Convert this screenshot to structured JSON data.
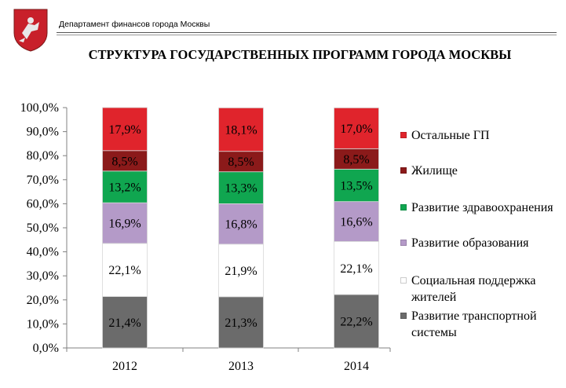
{
  "header": {
    "department": "Департамент финансов города Москвы",
    "title": "СТРУКТУРА ГОСУДАРСТВЕННЫХ ПРОГРАММ ГОРОДА МОСКВЫ"
  },
  "chart_data": {
    "type": "bar",
    "stacked": true,
    "categories": [
      "2012",
      "2013",
      "2014"
    ],
    "ylim": [
      0,
      100
    ],
    "yticks": [
      "0,0%",
      "10,0%",
      "20,0%",
      "30,0%",
      "40,0%",
      "50,0%",
      "60,0%",
      "70,0%",
      "80,0%",
      "90,0%",
      "100,0%"
    ],
    "series": [
      {
        "name": "Развитие транспортной системы",
        "values": [
          21.4,
          21.3,
          22.2
        ],
        "labels": [
          "21,4%",
          "21,3%",
          "22,2%"
        ],
        "color": "#6b6b6b"
      },
      {
        "name": "Социальная поддержка жителей",
        "values": [
          22.1,
          21.9,
          22.1
        ],
        "labels": [
          "22,1%",
          "21,9%",
          "22,1%"
        ],
        "color": "#ffffff"
      },
      {
        "name": "Развитие образования",
        "values": [
          16.9,
          16.8,
          16.6
        ],
        "labels": [
          "16,9%",
          "16,8%",
          "16,6%"
        ],
        "color": "#b49ac8"
      },
      {
        "name": "Развитие здравоохранения",
        "values": [
          13.2,
          13.3,
          13.5
        ],
        "labels": [
          "13,2%",
          "13,3%",
          "13,5%"
        ],
        "color": "#10a650"
      },
      {
        "name": "Жилище",
        "values": [
          8.5,
          8.5,
          8.5
        ],
        "labels": [
          "8,5%",
          "8,5%",
          "8,5%"
        ],
        "color": "#8b1a1a"
      },
      {
        "name": "Остальные ГП",
        "values": [
          17.9,
          18.1,
          17.0
        ],
        "labels": [
          "17,9%",
          "18,1%",
          "17,0%"
        ],
        "color": "#e0242c"
      }
    ],
    "legend": [
      {
        "label": "Остальные ГП",
        "color": "#e0242c"
      },
      {
        "label": "Жилище",
        "color": "#8b1a1a"
      },
      {
        "label": "Развитие здравоохранения",
        "color": "#10a650"
      },
      {
        "label": "Развитие образования",
        "color": "#b49ac8"
      },
      {
        "label": "Социальная поддержка жителей",
        "color": "#ffffff"
      },
      {
        "label": "Развитие транспортной системы",
        "color": "#6b6b6b"
      }
    ]
  }
}
